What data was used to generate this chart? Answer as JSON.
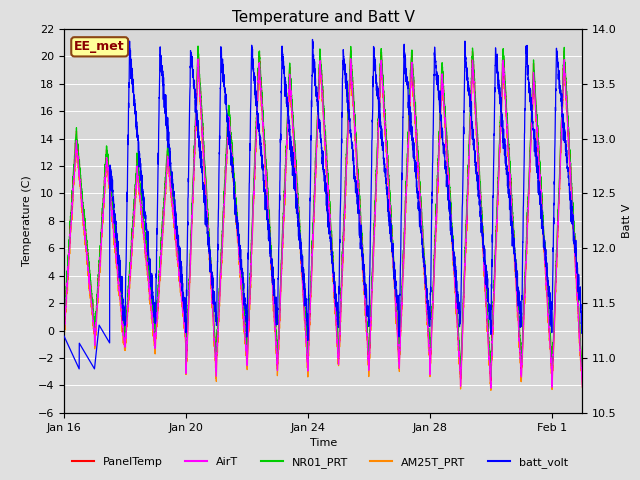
{
  "title": "Temperature and Batt V",
  "xlabel": "Time",
  "ylabel_left": "Temperature (C)",
  "ylabel_right": "Batt V",
  "ylim_left": [
    -6,
    22
  ],
  "ylim_right": [
    10.5,
    14.0
  ],
  "yticks_left": [
    -6,
    -4,
    -2,
    0,
    2,
    4,
    6,
    8,
    10,
    12,
    14,
    16,
    18,
    20,
    22
  ],
  "yticks_right": [
    10.5,
    11.0,
    11.5,
    12.0,
    12.5,
    13.0,
    13.5,
    14.0
  ],
  "xtick_positions": [
    0,
    4,
    8,
    12,
    16
  ],
  "xtick_labels": [
    "Jan 16",
    "Jan 20",
    "Jan 24",
    "Jan 28",
    "Feb 1"
  ],
  "colors": {
    "PanelTemp": "#ff0000",
    "AirT": "#ff00ff",
    "NR01_PRT": "#00cc00",
    "AM25T_PRT": "#ff8800",
    "batt_volt": "#0000ff"
  },
  "legend_labels": [
    "PanelTemp",
    "AirT",
    "NR01_PRT",
    "AM25T_PRT",
    "batt_volt"
  ],
  "figure_bg": "#e0e0e0",
  "axes_bg": "#d8d8d8",
  "watermark_text": "EE_met",
  "watermark_color": "#8b0000",
  "watermark_bg": "#ffff99",
  "watermark_border": "#8b4513",
  "title_fontsize": 11,
  "label_fontsize": 8,
  "tick_fontsize": 8,
  "legend_fontsize": 8,
  "line_width": 0.9
}
